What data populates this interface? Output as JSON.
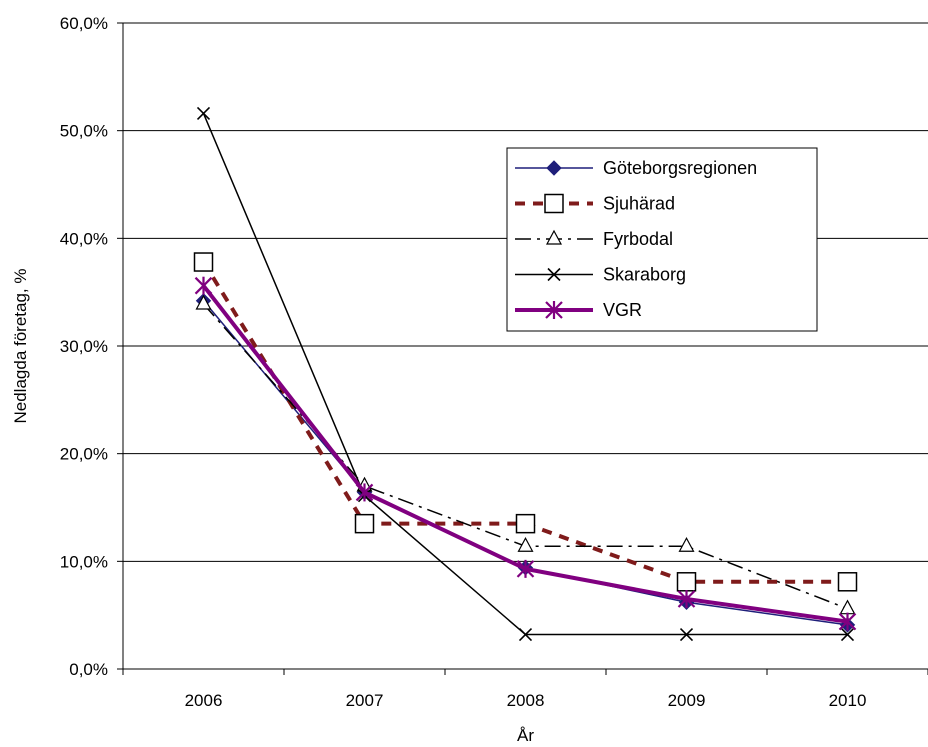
{
  "chart_data": {
    "type": "line",
    "title": "",
    "xlabel": "År",
    "ylabel": "Nedlagda företag, %",
    "categories": [
      "2006",
      "2007",
      "2008",
      "2009",
      "2010"
    ],
    "ylim": [
      0,
      60
    ],
    "y_tick_values": [
      0,
      10,
      20,
      30,
      40,
      50,
      60
    ],
    "y_tick_labels": [
      "0,0%",
      "10,0%",
      "20,0%",
      "30,0%",
      "40,0%",
      "50,0%",
      "60,0%"
    ],
    "grid": "horizontal",
    "legend_position": "right",
    "series": [
      {
        "name": "Göteborgsregionen",
        "values": [
          34.2,
          16.4,
          9.4,
          6.2,
          4.1
        ],
        "color": "#1f1f7a",
        "dash": "solid",
        "marker": "diamond",
        "width": 1.5
      },
      {
        "name": "Sjuhärad",
        "values": [
          37.8,
          13.5,
          13.5,
          8.1,
          8.1
        ],
        "color": "#7f1b1b",
        "dash": "dashed",
        "marker": "square",
        "width": 4
      },
      {
        "name": "Fyrbodal",
        "values": [
          33.9,
          17.0,
          11.4,
          11.4,
          5.6
        ],
        "color": "#000000",
        "dash": "dashdot",
        "marker": "triangle",
        "width": 1.5
      },
      {
        "name": "Skaraborg",
        "values": [
          51.6,
          16.1,
          3.2,
          3.2,
          3.2
        ],
        "color": "#000000",
        "dash": "solid",
        "marker": "x",
        "width": 1.5
      },
      {
        "name": "VGR",
        "values": [
          35.6,
          16.4,
          9.3,
          6.5,
          4.4
        ],
        "color": "#800080",
        "dash": "solid",
        "marker": "asterisk",
        "width": 4
      }
    ]
  }
}
